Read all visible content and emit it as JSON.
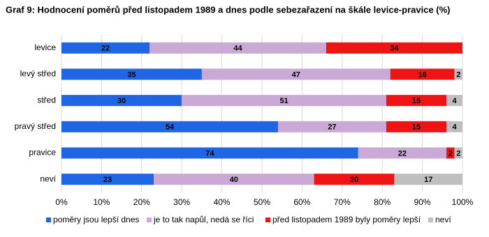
{
  "chart_data": {
    "type": "stacked-barh",
    "title": "Graf 9: Hodnocení poměrů před listopadem 1989 a dnes podle sebezařazení na škále levice-pravice (%)",
    "categories": [
      "levice",
      "levý střed",
      "střed",
      "pravý střed",
      "pravice",
      "neví"
    ],
    "series": [
      {
        "name": "poměry jsou lepší dnes",
        "color": "#1f66e5",
        "values": [
          22,
          35,
          30,
          54,
          74,
          23
        ]
      },
      {
        "name": "je to tak napůl, nedá se říci",
        "color": "#caa9d6",
        "values": [
          44,
          47,
          51,
          27,
          22,
          40
        ]
      },
      {
        "name": "před listopadem 1989 byly poměry lepší",
        "color": "#ee1414",
        "values": [
          34,
          16,
          15,
          15,
          2,
          20
        ]
      },
      {
        "name": "neví",
        "color": "#bfbfbf",
        "values": [
          null,
          2,
          4,
          4,
          2,
          17
        ]
      }
    ],
    "xlim": [
      0,
      100
    ],
    "xticks": [
      {
        "value": 0,
        "label": "0%"
      },
      {
        "value": 10,
        "label": "10%"
      },
      {
        "value": 20,
        "label": "20%"
      },
      {
        "value": 30,
        "label": "30%"
      },
      {
        "value": 40,
        "label": "40%"
      },
      {
        "value": 50,
        "label": "50%"
      },
      {
        "value": 60,
        "label": "60%"
      },
      {
        "value": 70,
        "label": "70%"
      },
      {
        "value": 80,
        "label": "80%"
      },
      {
        "value": 90,
        "label": "90%"
      },
      {
        "value": 100,
        "label": "100%"
      }
    ],
    "grid": true
  }
}
